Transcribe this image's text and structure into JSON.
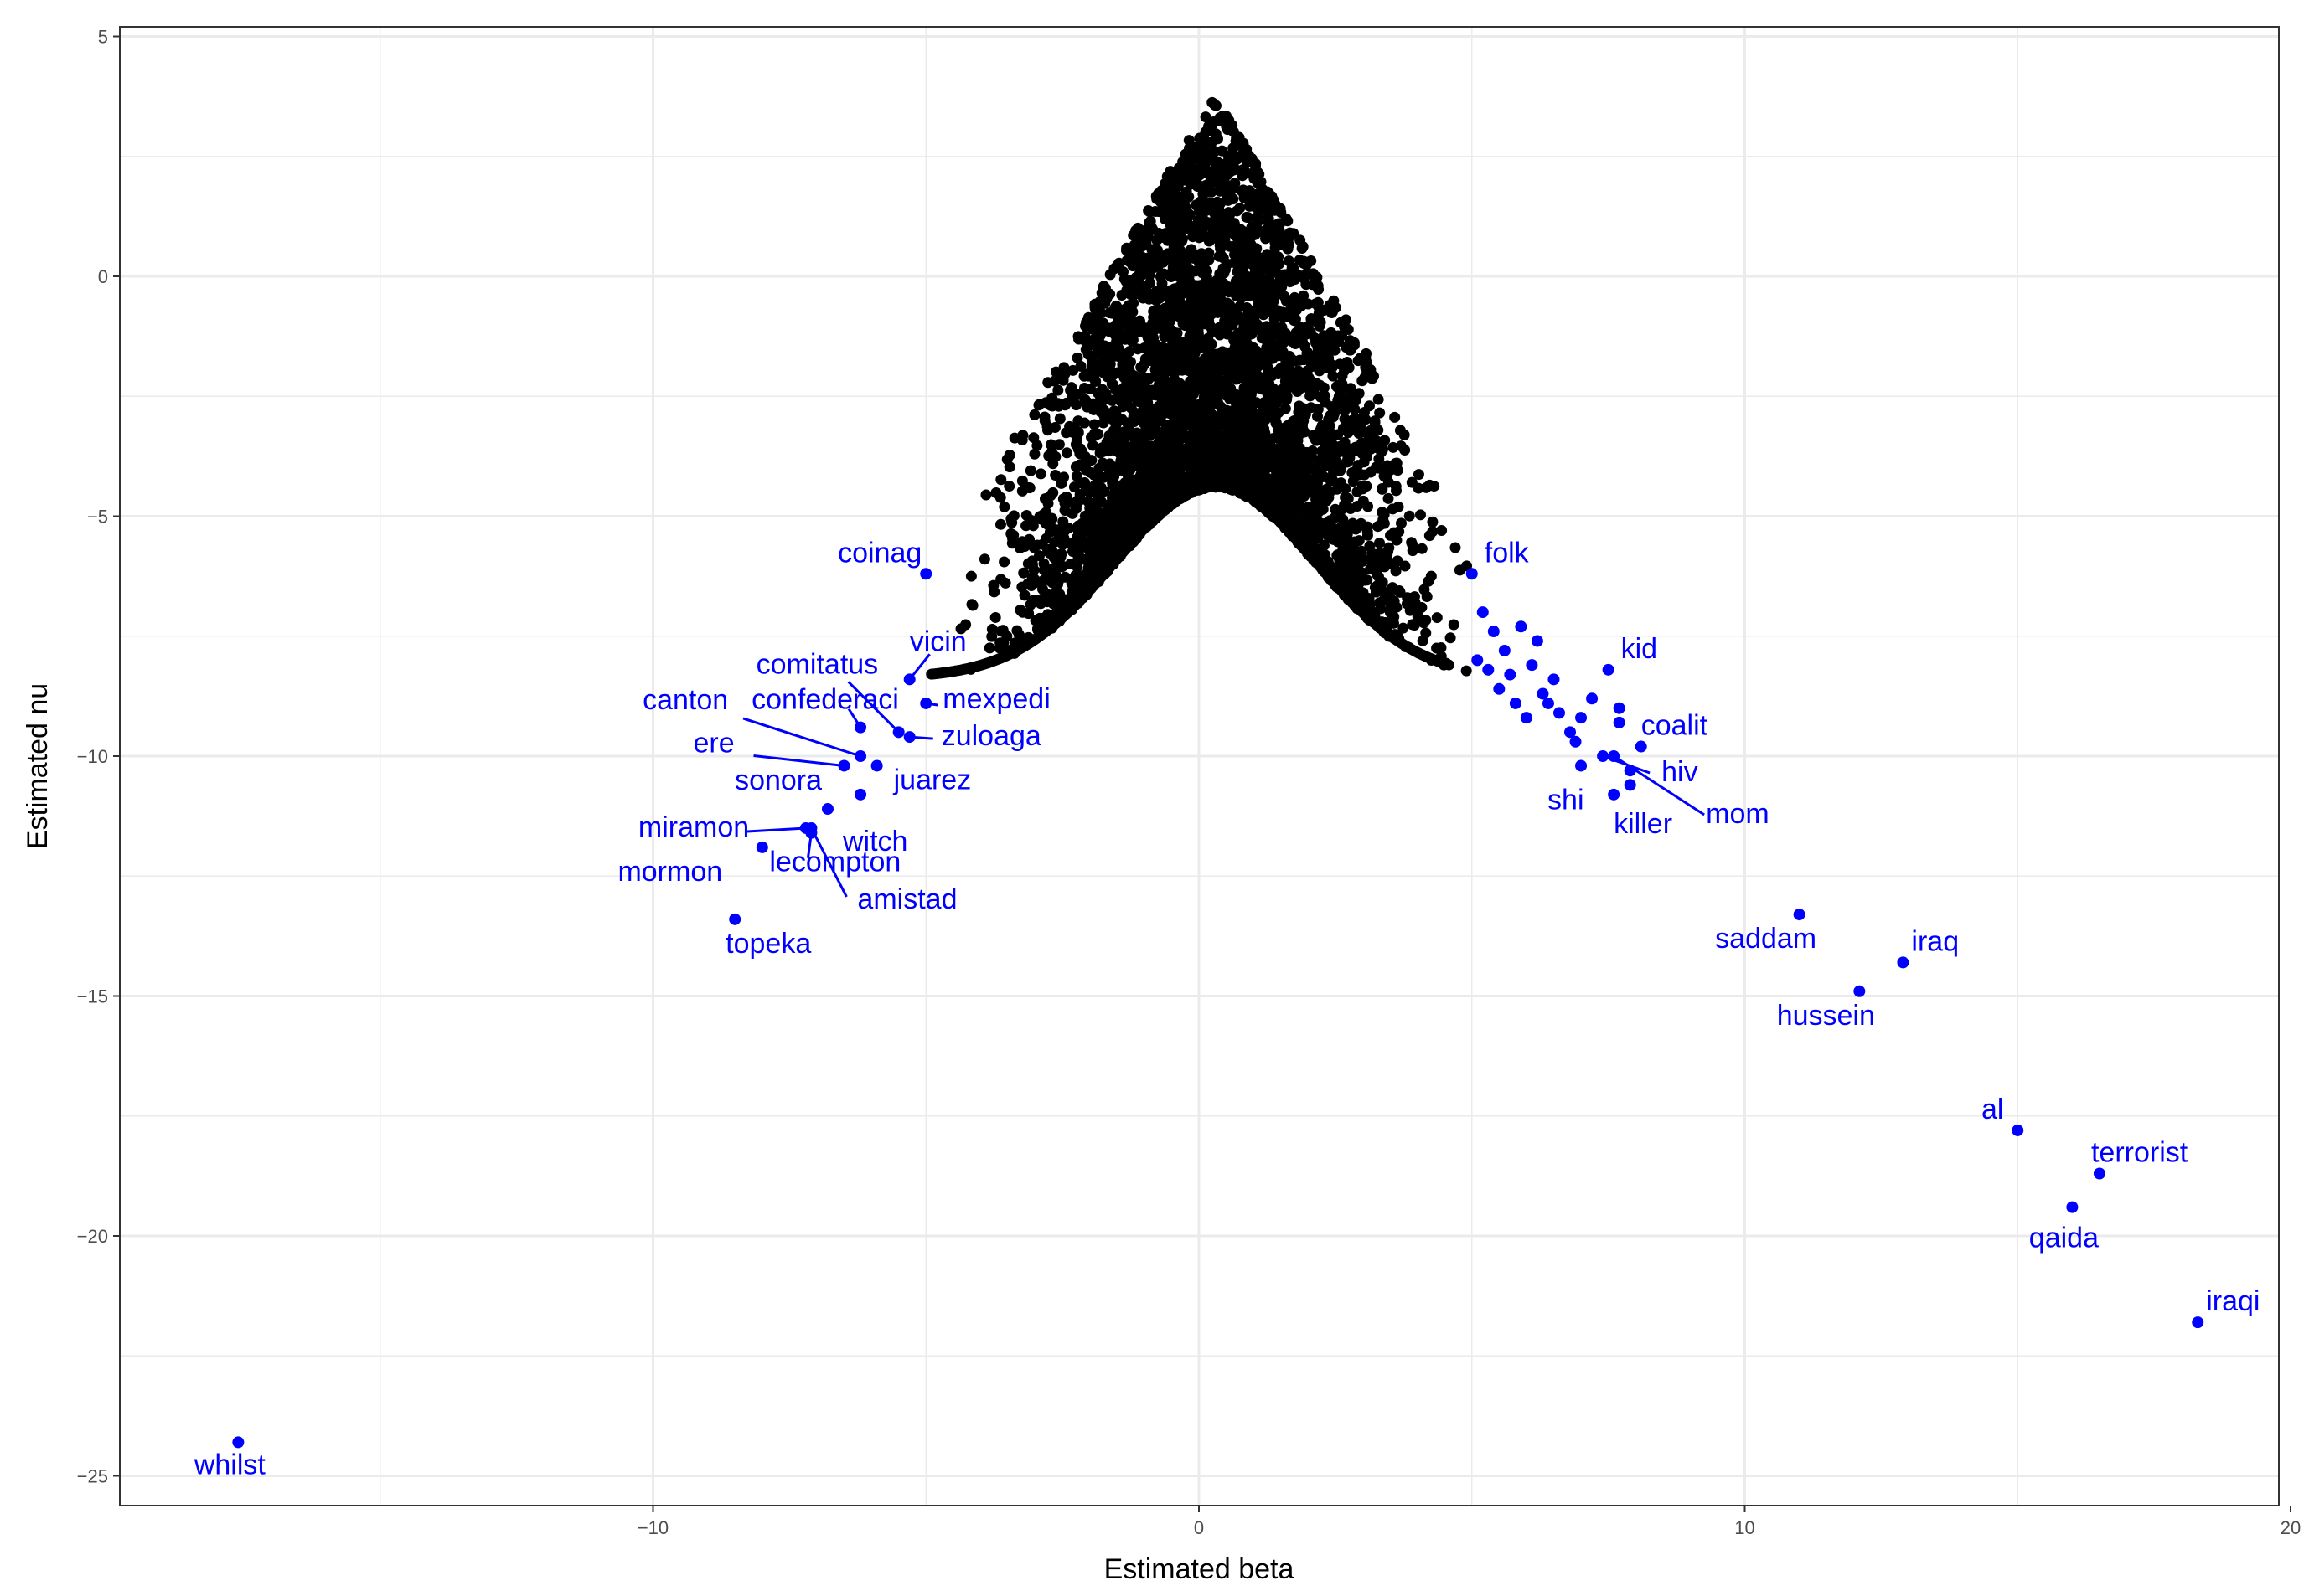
{
  "chart_data": {
    "type": "scatter",
    "title": "",
    "xlabel": "Estimated beta",
    "ylabel": "Estimated nu",
    "xlim": [
      -19.7,
      19.7
    ],
    "ylim": [
      -25.8,
      5.3
    ],
    "x_ticks": [
      -10,
      0,
      10,
      20
    ],
    "y_ticks": [
      5,
      0,
      -5,
      -10,
      -15,
      -20,
      -25
    ],
    "x_tick_labels": [
      "−10",
      "0",
      "10",
      "20"
    ],
    "y_tick_labels": [
      "5",
      "0",
      "−5",
      "−10",
      "−15",
      "−20",
      "−25"
    ],
    "grid": true,
    "theme": "bw",
    "colors": {
      "bulk": "#000000",
      "highlight": "#0000ff",
      "grid": "#ebebeb",
      "axis_text": "#4d4d4d"
    },
    "bulk_cloud": {
      "description_of_shape": "dense black point cloud of all words forming an inverted-V",
      "peak": {
        "x": 0.3,
        "y": 3.8
      },
      "lower_envelope_peak": {
        "x": 0.3,
        "y": -4.4
      },
      "left_extreme": {
        "x": -5.2,
        "y": -9.3
      },
      "right_extreme": {
        "x": 5.0,
        "y": -8.4
      }
    },
    "labeled_points": [
      {
        "label": "whilst",
        "x": -17.6,
        "y": -24.3
      },
      {
        "label": "iraqi",
        "x": 18.3,
        "y": -21.8
      },
      {
        "label": "qaida",
        "x": 16.0,
        "y": -19.4
      },
      {
        "label": "terrorist",
        "x": 16.5,
        "y": -18.7
      },
      {
        "label": "al",
        "x": 15.0,
        "y": -17.8
      },
      {
        "label": "hussein",
        "x": 12.1,
        "y": -14.9
      },
      {
        "label": "iraq",
        "x": 12.9,
        "y": -14.3
      },
      {
        "label": "saddam",
        "x": 11.0,
        "y": -13.3
      },
      {
        "label": "topeka",
        "x": -8.5,
        "y": -13.4
      },
      {
        "label": "mormon",
        "x": -8.0,
        "y": -11.9
      },
      {
        "label": "miramon",
        "x": -7.2,
        "y": -11.5
      },
      {
        "label": "lecompton",
        "x": -7.1,
        "y": -11.6
      },
      {
        "label": "amistad",
        "x": -7.1,
        "y": -11.5
      },
      {
        "label": "witch",
        "x": -6.8,
        "y": -11.1
      },
      {
        "label": "sonora",
        "x": -6.2,
        "y": -10.8
      },
      {
        "label": "juarez",
        "x": -5.9,
        "y": -10.2
      },
      {
        "label": "ere",
        "x": -6.5,
        "y": -10.2
      },
      {
        "label": "canton",
        "x": -6.2,
        "y": -10.0
      },
      {
        "label": "confederaci",
        "x": -6.2,
        "y": -9.4
      },
      {
        "label": "comitatus",
        "x": -5.5,
        "y": -9.5
      },
      {
        "label": "zuloaga",
        "x": -5.3,
        "y": -9.6
      },
      {
        "label": "mexpedi",
        "x": -5.0,
        "y": -8.9
      },
      {
        "label": "vicin",
        "x": -5.3,
        "y": -8.4
      },
      {
        "label": "coinag",
        "x": -5.0,
        "y": -6.2
      },
      {
        "label": "folk",
        "x": 5.0,
        "y": -6.2
      },
      {
        "label": "kid",
        "x": 7.5,
        "y": -8.2
      },
      {
        "label": "coalit",
        "x": 8.1,
        "y": -9.8
      },
      {
        "label": "hiv",
        "x": 7.4,
        "y": -10.0
      },
      {
        "label": "shi",
        "x": 7.0,
        "y": -10.2
      },
      {
        "label": "mom",
        "x": 7.6,
        "y": -10.0
      },
      {
        "label": "killer",
        "x": 7.6,
        "y": -10.8
      }
    ],
    "unlabeled_highlight_points": [
      {
        "x": 5.2,
        "y": -7.0
      },
      {
        "x": 5.4,
        "y": -7.4
      },
      {
        "x": 5.6,
        "y": -7.8
      },
      {
        "x": 5.9,
        "y": -7.3
      },
      {
        "x": 6.2,
        "y": -7.6
      },
      {
        "x": 6.5,
        "y": -8.4
      },
      {
        "x": 6.6,
        "y": -9.1
      },
      {
        "x": 6.8,
        "y": -9.5
      },
      {
        "x": 7.0,
        "y": -9.2
      },
      {
        "x": 7.2,
        "y": -8.8
      },
      {
        "x": 7.7,
        "y": -9.0
      },
      {
        "x": 7.7,
        "y": -9.3
      },
      {
        "x": 5.3,
        "y": -8.2
      },
      {
        "x": 5.5,
        "y": -8.6
      },
      {
        "x": 5.8,
        "y": -8.9
      },
      {
        "x": 6.0,
        "y": -9.2
      },
      {
        "x": 6.3,
        "y": -8.7
      },
      {
        "x": 5.1,
        "y": -8.0
      },
      {
        "x": 5.7,
        "y": -8.3
      },
      {
        "x": 6.1,
        "y": -8.1
      },
      {
        "x": 6.4,
        "y": -8.9
      },
      {
        "x": 7.9,
        "y": -10.6
      },
      {
        "x": 7.9,
        "y": -10.3
      },
      {
        "x": 6.9,
        "y": -9.7
      }
    ]
  }
}
